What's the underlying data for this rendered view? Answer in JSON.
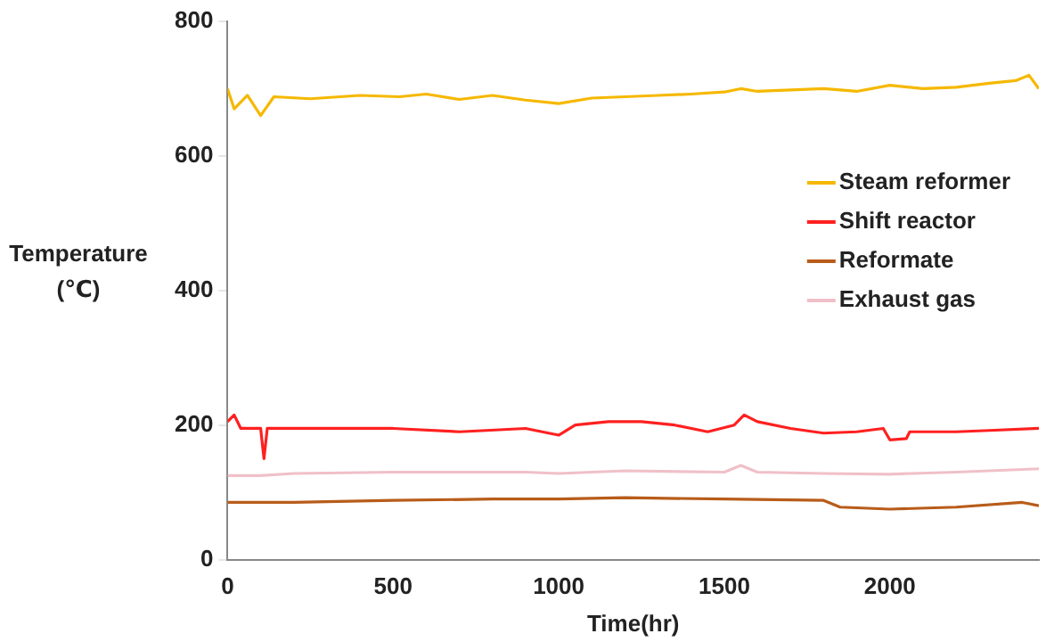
{
  "chart_data": {
    "type": "line",
    "xlabel": "Time(hr)",
    "ylabel": "Temperature\n(℃)",
    "xlim": [
      0,
      2450
    ],
    "xticks": [
      0,
      500,
      1000,
      1500,
      2000
    ],
    "ylim": [
      0,
      800
    ],
    "yticks": [
      0,
      200,
      400,
      600,
      800
    ],
    "grid": false,
    "legend": "right",
    "marker": "none",
    "line_style": "solid",
    "series": [
      {
        "name": "Steam reformer",
        "color": "#f5b800",
        "x": [
          0,
          20,
          60,
          100,
          140,
          250,
          400,
          520,
          600,
          700,
          800,
          900,
          1000,
          1100,
          1200,
          1300,
          1400,
          1500,
          1550,
          1600,
          1700,
          1800,
          1900,
          2000,
          2100,
          2200,
          2300,
          2380,
          2420,
          2450
        ],
        "values": [
          700,
          670,
          690,
          660,
          688,
          685,
          690,
          688,
          692,
          684,
          690,
          683,
          678,
          686,
          688,
          690,
          692,
          695,
          700,
          696,
          698,
          700,
          696,
          705,
          700,
          702,
          708,
          712,
          720,
          700
        ]
      },
      {
        "name": "Shift reactor",
        "color": "#ff2020",
        "x": [
          0,
          20,
          40,
          100,
          110,
          120,
          300,
          500,
          700,
          900,
          1000,
          1050,
          1150,
          1250,
          1350,
          1450,
          1530,
          1560,
          1600,
          1700,
          1800,
          1900,
          1980,
          2000,
          2050,
          2060,
          2200,
          2300,
          2450
        ],
        "values": [
          205,
          215,
          195,
          195,
          150,
          195,
          195,
          195,
          190,
          195,
          185,
          200,
          205,
          205,
          200,
          190,
          200,
          215,
          205,
          195,
          188,
          190,
          195,
          178,
          180,
          190,
          190,
          192,
          195
        ]
      },
      {
        "name": "Reformate",
        "color": "#b85c1a",
        "x": [
          0,
          200,
          500,
          800,
          1000,
          1200,
          1500,
          1800,
          1850,
          2000,
          2200,
          2400,
          2450
        ],
        "values": [
          85,
          85,
          88,
          90,
          90,
          92,
          90,
          88,
          78,
          75,
          78,
          85,
          80
        ]
      },
      {
        "name": "Exhaust gas",
        "color": "#f0c0c8",
        "x": [
          0,
          100,
          200,
          500,
          900,
          1000,
          1200,
          1500,
          1550,
          1600,
          1800,
          2000,
          2200,
          2450
        ],
        "values": [
          125,
          125,
          128,
          130,
          130,
          128,
          132,
          130,
          140,
          130,
          128,
          127,
          130,
          135
        ]
      }
    ]
  }
}
